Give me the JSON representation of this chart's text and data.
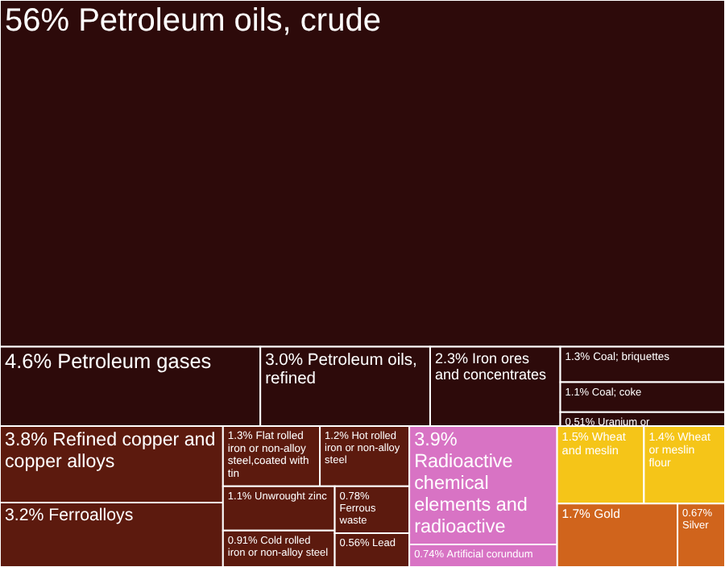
{
  "chart_data": {
    "type": "other",
    "categories": [
      "Petroleum oils, crude",
      "Petroleum gases",
      "Petroleum oils, refined",
      "Iron ores and concentrates",
      "Coal; briquettes",
      "Coal; coke",
      "Uranium or",
      "Refined copper and copper alloys",
      "Ferroalloys",
      "Flat rolled iron or non-alloy steel,coated with tin",
      "Hot rolled iron or non-alloy steel",
      "Unwrought zinc",
      "Cold rolled iron or non-alloy steel",
      "Ferrous waste",
      "Lead",
      "Radioactive chemical elements and radioactive",
      "Artificial corundum",
      "Wheat and meslin",
      "Wheat or meslin flour",
      "Gold",
      "Silver"
    ],
    "values": [
      56,
      4.6,
      3.0,
      2.3,
      1.3,
      1.1,
      0.51,
      3.8,
      3.2,
      1.3,
      1.2,
      1.1,
      0.91,
      0.78,
      0.56,
      3.9,
      0.74,
      1.5,
      1.4,
      1.7,
      0.67
    ],
    "value_labels": [
      "56%",
      "4.6%",
      "3.0%",
      "2.3%",
      "1.3%",
      "1.1%",
      "0.51%",
      "3.8%",
      "3.2%",
      "1.3%",
      "1.2%",
      "1.1%",
      "0.91%",
      "0.78%",
      "0.56%",
      "3.9%",
      "0.74%",
      "1.5%",
      "1.4%",
      "1.7%",
      "0.67%"
    ],
    "colors": [
      "#2d0a0a",
      "#2d0a0a",
      "#2d0a0a",
      "#2d0a0a",
      "#2d0a0a",
      "#2d0a0a",
      "#2d0a0a",
      "#5c1a0e",
      "#5c1a0e",
      "#5c1a0e",
      "#5c1a0e",
      "#5c1a0e",
      "#5c1a0e",
      "#5c1a0e",
      "#5c1a0e",
      "#d873c4",
      "#d873c4",
      "#f5c518",
      "#f5c518",
      "#d0641c",
      "#d0641c"
    ]
  }
}
